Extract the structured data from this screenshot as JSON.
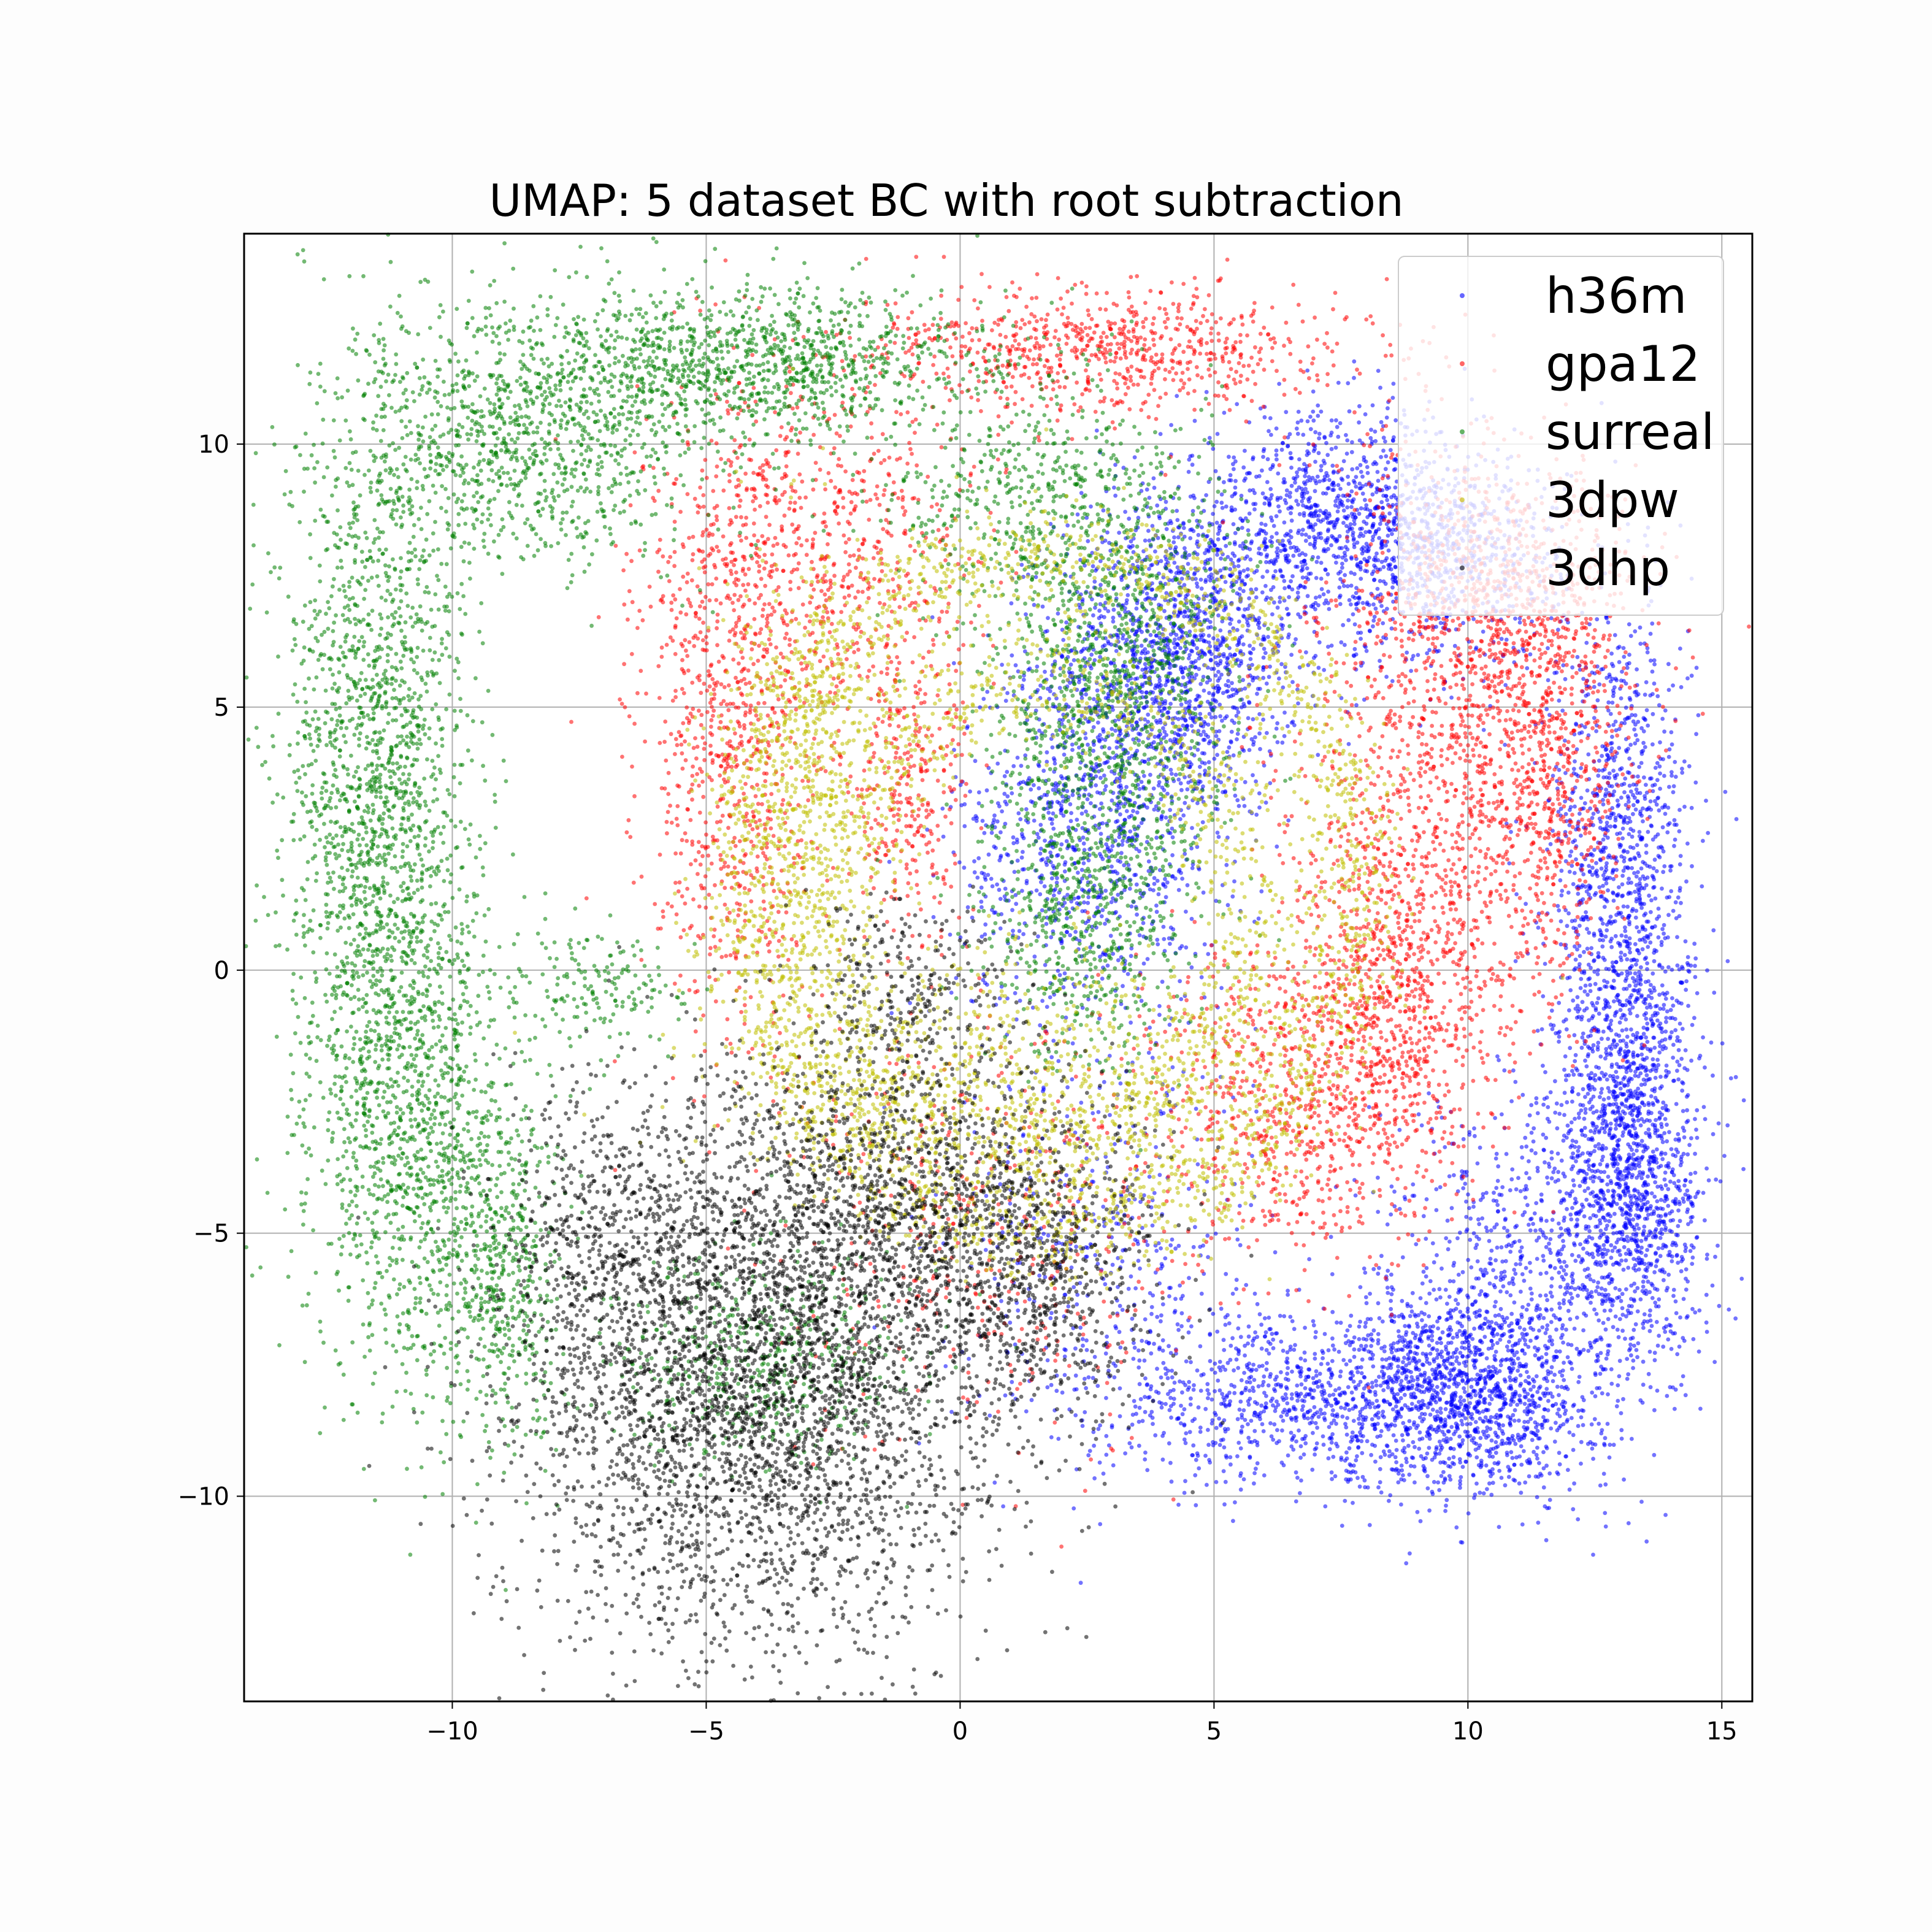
{
  "chart_data": {
    "type": "scatter",
    "title": "UMAP: 5 dataset BC with root subtraction",
    "xlabel": "",
    "ylabel": "",
    "xlim": [
      -14.1,
      15.6
    ],
    "ylim": [
      -13.9,
      14.0
    ],
    "xticks": [
      -10,
      -5,
      0,
      5,
      10,
      15
    ],
    "yticks": [
      -10,
      -5,
      0,
      5,
      10
    ],
    "xtick_labels": [
      "−10",
      "−5",
      "0",
      "5",
      "10",
      "15"
    ],
    "ytick_labels": [
      "−10",
      "−5",
      "0",
      "5",
      "10"
    ],
    "grid": true,
    "legend": {
      "position": "top-right",
      "entries": [
        "h36m",
        "gpa12",
        "surreal",
        "3dpw",
        "3dhp"
      ]
    },
    "series": [
      {
        "name": "h36m",
        "color": "#0000ff",
        "clusters": [
          {
            "x": 4.3,
            "y": 6.0,
            "sx": 1.2,
            "sy": 1.5,
            "n": 1400
          },
          {
            "x": 2.5,
            "y": 2.5,
            "sx": 1.3,
            "sy": 1.8,
            "n": 900
          },
          {
            "x": 7.2,
            "y": 8.6,
            "sx": 1.5,
            "sy": 1.0,
            "n": 900
          },
          {
            "x": 9.5,
            "y": 7.8,
            "sx": 1.2,
            "sy": 1.0,
            "n": 700
          },
          {
            "x": 13.0,
            "y": 2.0,
            "sx": 0.7,
            "sy": 2.5,
            "n": 1100
          },
          {
            "x": 13.2,
            "y": -3.5,
            "sx": 0.7,
            "sy": 2.0,
            "n": 1300
          },
          {
            "x": 10.0,
            "y": -8.0,
            "sx": 1.3,
            "sy": 1.0,
            "n": 1400
          },
          {
            "x": 6.5,
            "y": -8.2,
            "sx": 2.0,
            "sy": 0.8,
            "n": 800
          },
          {
            "x": 11.5,
            "y": -5.2,
            "sx": 1.5,
            "sy": 1.5,
            "n": 700
          },
          {
            "x": 3.0,
            "y": -5.5,
            "sx": 1.5,
            "sy": 2.0,
            "n": 400
          }
        ]
      },
      {
        "name": "gpa12",
        "color": "#ff0000",
        "clusters": [
          {
            "x": 3.0,
            "y": 11.8,
            "sx": 2.5,
            "sy": 0.6,
            "n": 800
          },
          {
            "x": -4.5,
            "y": 4.5,
            "sx": 0.9,
            "sy": 3.0,
            "n": 900
          },
          {
            "x": -2.5,
            "y": 8.0,
            "sx": 1.5,
            "sy": 1.5,
            "n": 600
          },
          {
            "x": 9.0,
            "y": 2.0,
            "sx": 1.3,
            "sy": 2.5,
            "n": 900
          },
          {
            "x": 10.5,
            "y": 7.0,
            "sx": 1.5,
            "sy": 1.5,
            "n": 800
          },
          {
            "x": 11.5,
            "y": 4.0,
            "sx": 0.8,
            "sy": 2.0,
            "n": 700
          },
          {
            "x": 6.5,
            "y": -2.5,
            "sx": 1.5,
            "sy": 1.5,
            "n": 700
          },
          {
            "x": 8.5,
            "y": -1.0,
            "sx": 1.0,
            "sy": 1.5,
            "n": 500
          },
          {
            "x": 0.5,
            "y": -5.0,
            "sx": 2.0,
            "sy": 2.0,
            "n": 400
          },
          {
            "x": -1.0,
            "y": 3.5,
            "sx": 0.6,
            "sy": 1.5,
            "n": 300
          }
        ]
      },
      {
        "name": "surreal",
        "color": "#008000",
        "clusters": [
          {
            "x": -11.5,
            "y": 3.0,
            "sx": 0.9,
            "sy": 4.0,
            "n": 2000
          },
          {
            "x": -10.5,
            "y": -3.5,
            "sx": 1.1,
            "sy": 2.5,
            "n": 1000
          },
          {
            "x": -8.5,
            "y": 10.2,
            "sx": 1.8,
            "sy": 1.2,
            "n": 1100
          },
          {
            "x": -4.0,
            "y": 11.6,
            "sx": 2.2,
            "sy": 0.7,
            "n": 1100
          },
          {
            "x": -9.0,
            "y": -6.0,
            "sx": 0.6,
            "sy": 1.5,
            "n": 400
          },
          {
            "x": 3.0,
            "y": 5.5,
            "sx": 1.2,
            "sy": 2.0,
            "n": 1100
          },
          {
            "x": 2.5,
            "y": 1.0,
            "sx": 1.0,
            "sy": 1.5,
            "n": 600
          },
          {
            "x": 1.5,
            "y": 9.0,
            "sx": 1.5,
            "sy": 1.2,
            "n": 500
          },
          {
            "x": -4.0,
            "y": -7.5,
            "sx": 1.5,
            "sy": 1.0,
            "n": 500
          },
          {
            "x": -7.0,
            "y": -0.5,
            "sx": 0.8,
            "sy": 0.5,
            "n": 150
          }
        ]
      },
      {
        "name": "3dpw",
        "color": "#bfbf00",
        "rings": [
          {
            "cx": 1.8,
            "cy": 1.5,
            "rx": 6.0,
            "ry": 6.5,
            "w": 0.55,
            "n": 2200
          },
          {
            "cx": 1.5,
            "cy": 1.0,
            "rx": 4.2,
            "ry": 4.5,
            "w": 0.6,
            "n": 1300
          }
        ],
        "clusters": [
          {
            "x": 1.0,
            "y": -2.0,
            "sx": 2.5,
            "sy": 1.2,
            "n": 700
          },
          {
            "x": -3.0,
            "y": 3.5,
            "sx": 1.0,
            "sy": 2.5,
            "n": 500
          }
        ]
      },
      {
        "name": "3dhp",
        "color": "#000000",
        "clusters": [
          {
            "x": -4.0,
            "y": -8.0,
            "sx": 2.3,
            "sy": 2.4,
            "n": 3600
          },
          {
            "x": -1.5,
            "y": -4.5,
            "sx": 2.0,
            "sy": 1.5,
            "n": 1200
          },
          {
            "x": 1.5,
            "y": -6.0,
            "sx": 1.3,
            "sy": 1.5,
            "n": 700
          },
          {
            "x": -7.0,
            "y": -5.0,
            "sx": 1.0,
            "sy": 1.5,
            "n": 500
          },
          {
            "x": -1.0,
            "y": -0.5,
            "sx": 1.2,
            "sy": 1.0,
            "n": 300
          }
        ]
      }
    ]
  }
}
